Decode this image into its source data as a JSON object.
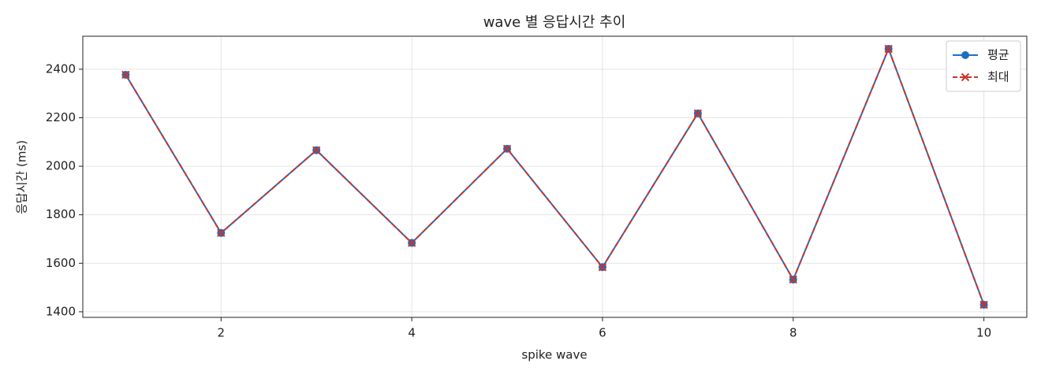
{
  "chart_data": {
    "type": "line",
    "title": "wave 별 응답시간 추이",
    "x_label": "spike wave",
    "y_label": "응답시간 (ms)",
    "x": [
      1,
      2,
      3,
      4,
      5,
      6,
      7,
      8,
      9,
      10
    ],
    "series": [
      {
        "name": "평균",
        "color": "#1f6fbf",
        "marker": "circle",
        "dash": "solid",
        "values": [
          2377,
          1725,
          2066,
          1684,
          2072,
          1584,
          2218,
          1533,
          2484,
          1429
        ]
      },
      {
        "name": "최대",
        "color": "#c8342c",
        "marker": "x",
        "dash": "dashed",
        "values": [
          2377,
          1725,
          2066,
          1684,
          2072,
          1584,
          2218,
          1533,
          2484,
          1429
        ]
      }
    ],
    "xlim": [
      0.55,
      10.45
    ],
    "ylim": [
      1377,
      2536
    ],
    "xticks": [
      2,
      4,
      6,
      8,
      10
    ],
    "yticks": [
      1400,
      1600,
      1800,
      2000,
      2200,
      2400
    ],
    "grid": true,
    "legend": "upper right"
  }
}
